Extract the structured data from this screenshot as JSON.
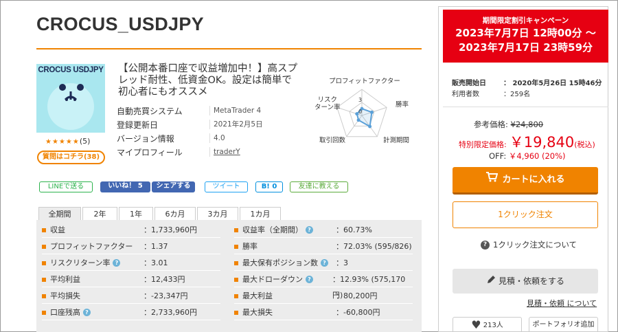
{
  "title": "CROCUS_USDJPY",
  "thumbnail": {
    "text": "CROCUS USDJPY"
  },
  "rating": {
    "stars": "★★★★★",
    "count": "(5)"
  },
  "question_button": "質問はコチラ(38)",
  "description": "【公開本番口座で収益増加中！】高スプレッド耐性、低資金OK。設定は簡単で初心者にもオススメ",
  "info": [
    {
      "key": "自動売買システム",
      "value": "MetaTrader 4"
    },
    {
      "key": "登録更新日",
      "value": "2021年2月5日"
    },
    {
      "key": "バージョン情報",
      "value": "4.0"
    },
    {
      "key": "マイプロフィール",
      "value": "traderY"
    }
  ],
  "radar": {
    "labels": [
      "プロフィットファクター",
      "勝率",
      "計測期間",
      "取引回数",
      "リスク\nターン率"
    ],
    "label_risk_1": "リスク",
    "label_risk_2": "ターン率",
    "scale_labels": [
      "3",
      "0"
    ],
    "values": [
      1.3,
      2.0,
      2.6,
      1.1,
      1.0
    ],
    "max": 5,
    "color": "#5aa0d8"
  },
  "social": {
    "line": "LINEで送る",
    "fb_like": "いいね！ 5",
    "fb_share": "シェアする",
    "tweet": "ツイート",
    "hatena": "B! 0",
    "mail": "友達に教える"
  },
  "tabs": [
    "全期間",
    "2年",
    "1年",
    "6カ月",
    "3カ月",
    "1カ月"
  ],
  "stats_left": [
    {
      "key": "収益",
      "value": "：1,733,960円",
      "help": false
    },
    {
      "key": "プロフィットファクター",
      "value": "：1.37",
      "help": false
    },
    {
      "key": "リスクリターン率",
      "value": "：3.01",
      "help": true
    },
    {
      "key": "平均利益",
      "value": "：12,433円",
      "help": false
    },
    {
      "key": "平均損失",
      "value": "：-23,347円",
      "help": false
    },
    {
      "key": "口座残高",
      "value": "：2,733,960円",
      "help": true
    }
  ],
  "stats_right": [
    {
      "key": "収益率（全期間）",
      "value": "：60.73%",
      "help": true
    },
    {
      "key": "勝率",
      "value": "：72.03% (595/826)",
      "help": false
    },
    {
      "key": "最大保有ポジション数",
      "value": "：3",
      "help": true
    },
    {
      "key": "最大ドローダウン",
      "value": "：12.93% (575,170円)",
      "help": true
    },
    {
      "key": "最大利益",
      "value": "：80,200円",
      "help": false
    },
    {
      "key": "最大損失",
      "value": "：-60,800円",
      "help": false
    }
  ],
  "campaign": {
    "title": "期間限定割引キャンペーン",
    "line1": "2023年7月7日 12時00分 ～",
    "line2": "2023年7月17日 23時59分"
  },
  "sale_start": {
    "key": "販売開始日",
    "value": "：  2020年5月26日 15時46分"
  },
  "users": {
    "key": "利用者数",
    "value": "：259名"
  },
  "price": {
    "ref_label": "参考価格:",
    "ref_value": "¥24,800",
    "special_label": "特別限定価格:",
    "special_value": "￥19,840",
    "tax": "(税込)",
    "off_label": "OFF:",
    "off_value": "￥4,960 (20%)"
  },
  "cart_button": "カートに入れる",
  "oneclick_button": "1クリック注文",
  "oneclick_about": "1クリック注文について",
  "estimate_button": "見積・依頼をする",
  "estimate_about": "見積・依頼 について",
  "favorite": "213人",
  "portfolio": "ポートフォリオ追加",
  "colors": {
    "accent": "#f08300",
    "campaign": "#e60012",
    "price_red": "#e60012"
  }
}
